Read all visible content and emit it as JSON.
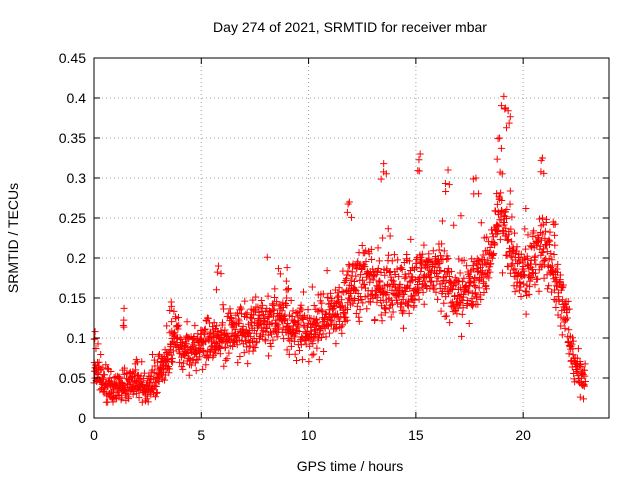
{
  "chart_data": {
    "type": "scatter",
    "title": "Day 274 of 2021, SRMTID for receiver mbar",
    "xlabel": "GPS time / hours",
    "ylabel": "SRMTID / TECUs",
    "xlim": [
      0,
      24
    ],
    "ylim": [
      0,
      0.45
    ],
    "x_ticks": [
      0,
      5,
      10,
      15,
      20
    ],
    "x_tick_labels": [
      "0",
      "5",
      "10",
      "15",
      "20"
    ],
    "y_ticks": [
      0,
      0.05,
      0.1,
      0.15,
      0.2,
      0.25,
      0.3,
      0.35,
      0.4,
      0.45
    ],
    "y_tick_labels": [
      "0",
      "0.05",
      "0.1",
      "0.15",
      "0.2",
      "0.25",
      "0.3",
      "0.35",
      "0.4",
      "0.45"
    ],
    "grid": true,
    "marker": "+",
    "color": "#ff0000",
    "series": [
      {
        "name": "SRMTID",
        "envelope": {
          "x": [
            0,
            0.2,
            0.5,
            1.0,
            1.5,
            2.0,
            2.5,
            3.0,
            3.5,
            3.8,
            4.2,
            5.0,
            6.0,
            7.0,
            8.0,
            9.0,
            10.0,
            11.0,
            11.5,
            12.0,
            13.0,
            14.0,
            15.0,
            16.0,
            17.0,
            18.0,
            18.5,
            19.0,
            19.5,
            20.0,
            20.5,
            21.0,
            21.5,
            22.0,
            22.3,
            22.5,
            22.8
          ],
          "y": [
            0.07,
            0.05,
            0.045,
            0.035,
            0.04,
            0.045,
            0.035,
            0.05,
            0.08,
            0.11,
            0.08,
            0.09,
            0.1,
            0.11,
            0.12,
            0.12,
            0.11,
            0.13,
            0.13,
            0.17,
            0.17,
            0.16,
            0.17,
            0.19,
            0.15,
            0.17,
            0.21,
            0.26,
            0.2,
            0.17,
            0.2,
            0.22,
            0.17,
            0.13,
            0.08,
            0.06,
            0.05
          ]
        },
        "peaks": [
          {
            "x": 0.05,
            "y": 0.108
          },
          {
            "x": 1.4,
            "y": 0.137
          },
          {
            "x": 3.6,
            "y": 0.145
          },
          {
            "x": 5.8,
            "y": 0.19
          },
          {
            "x": 9.0,
            "y": 0.188
          },
          {
            "x": 11.9,
            "y": 0.27
          },
          {
            "x": 13.5,
            "y": 0.318
          },
          {
            "x": 15.2,
            "y": 0.33
          },
          {
            "x": 16.5,
            "y": 0.31
          },
          {
            "x": 17.8,
            "y": 0.3
          },
          {
            "x": 18.9,
            "y": 0.35
          },
          {
            "x": 19.1,
            "y": 0.402
          },
          {
            "x": 19.3,
            "y": 0.384
          },
          {
            "x": 20.9,
            "y": 0.325
          },
          {
            "x": 21.4,
            "y": 0.245
          }
        ],
        "spread": 0.035,
        "x_step_hours": 0.0125,
        "x_end": 22.9
      }
    ]
  }
}
